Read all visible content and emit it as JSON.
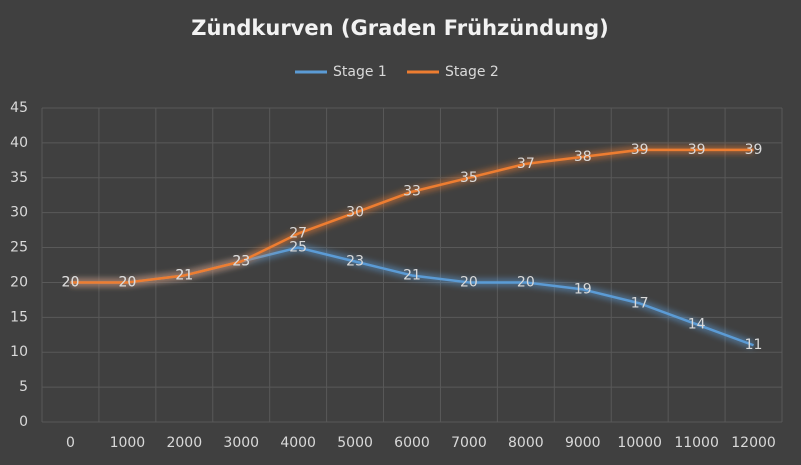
{
  "chart_data": {
    "type": "line",
    "title": "Zündkurven (Graden Frühzündung)",
    "categories": [
      "0",
      "1000",
      "2000",
      "3000",
      "4000",
      "5000",
      "6000",
      "7000",
      "8000",
      "9000",
      "10000",
      "11000",
      "12000"
    ],
    "series": [
      {
        "name": "Stage 1",
        "color": "#5b9bd5",
        "values": [
          20,
          20,
          21,
          23,
          25,
          23,
          21,
          20,
          20,
          19,
          17,
          14,
          11
        ]
      },
      {
        "name": "Stage 2",
        "color": "#ed7d31",
        "values": [
          20,
          20,
          21,
          23,
          27,
          30,
          33,
          35,
          37,
          38,
          39,
          39,
          39
        ]
      }
    ],
    "ylim": [
      0,
      45
    ],
    "yticks": [
      0,
      5,
      10,
      15,
      20,
      25,
      30,
      35,
      40,
      45
    ],
    "grid": true,
    "legend": "top"
  }
}
